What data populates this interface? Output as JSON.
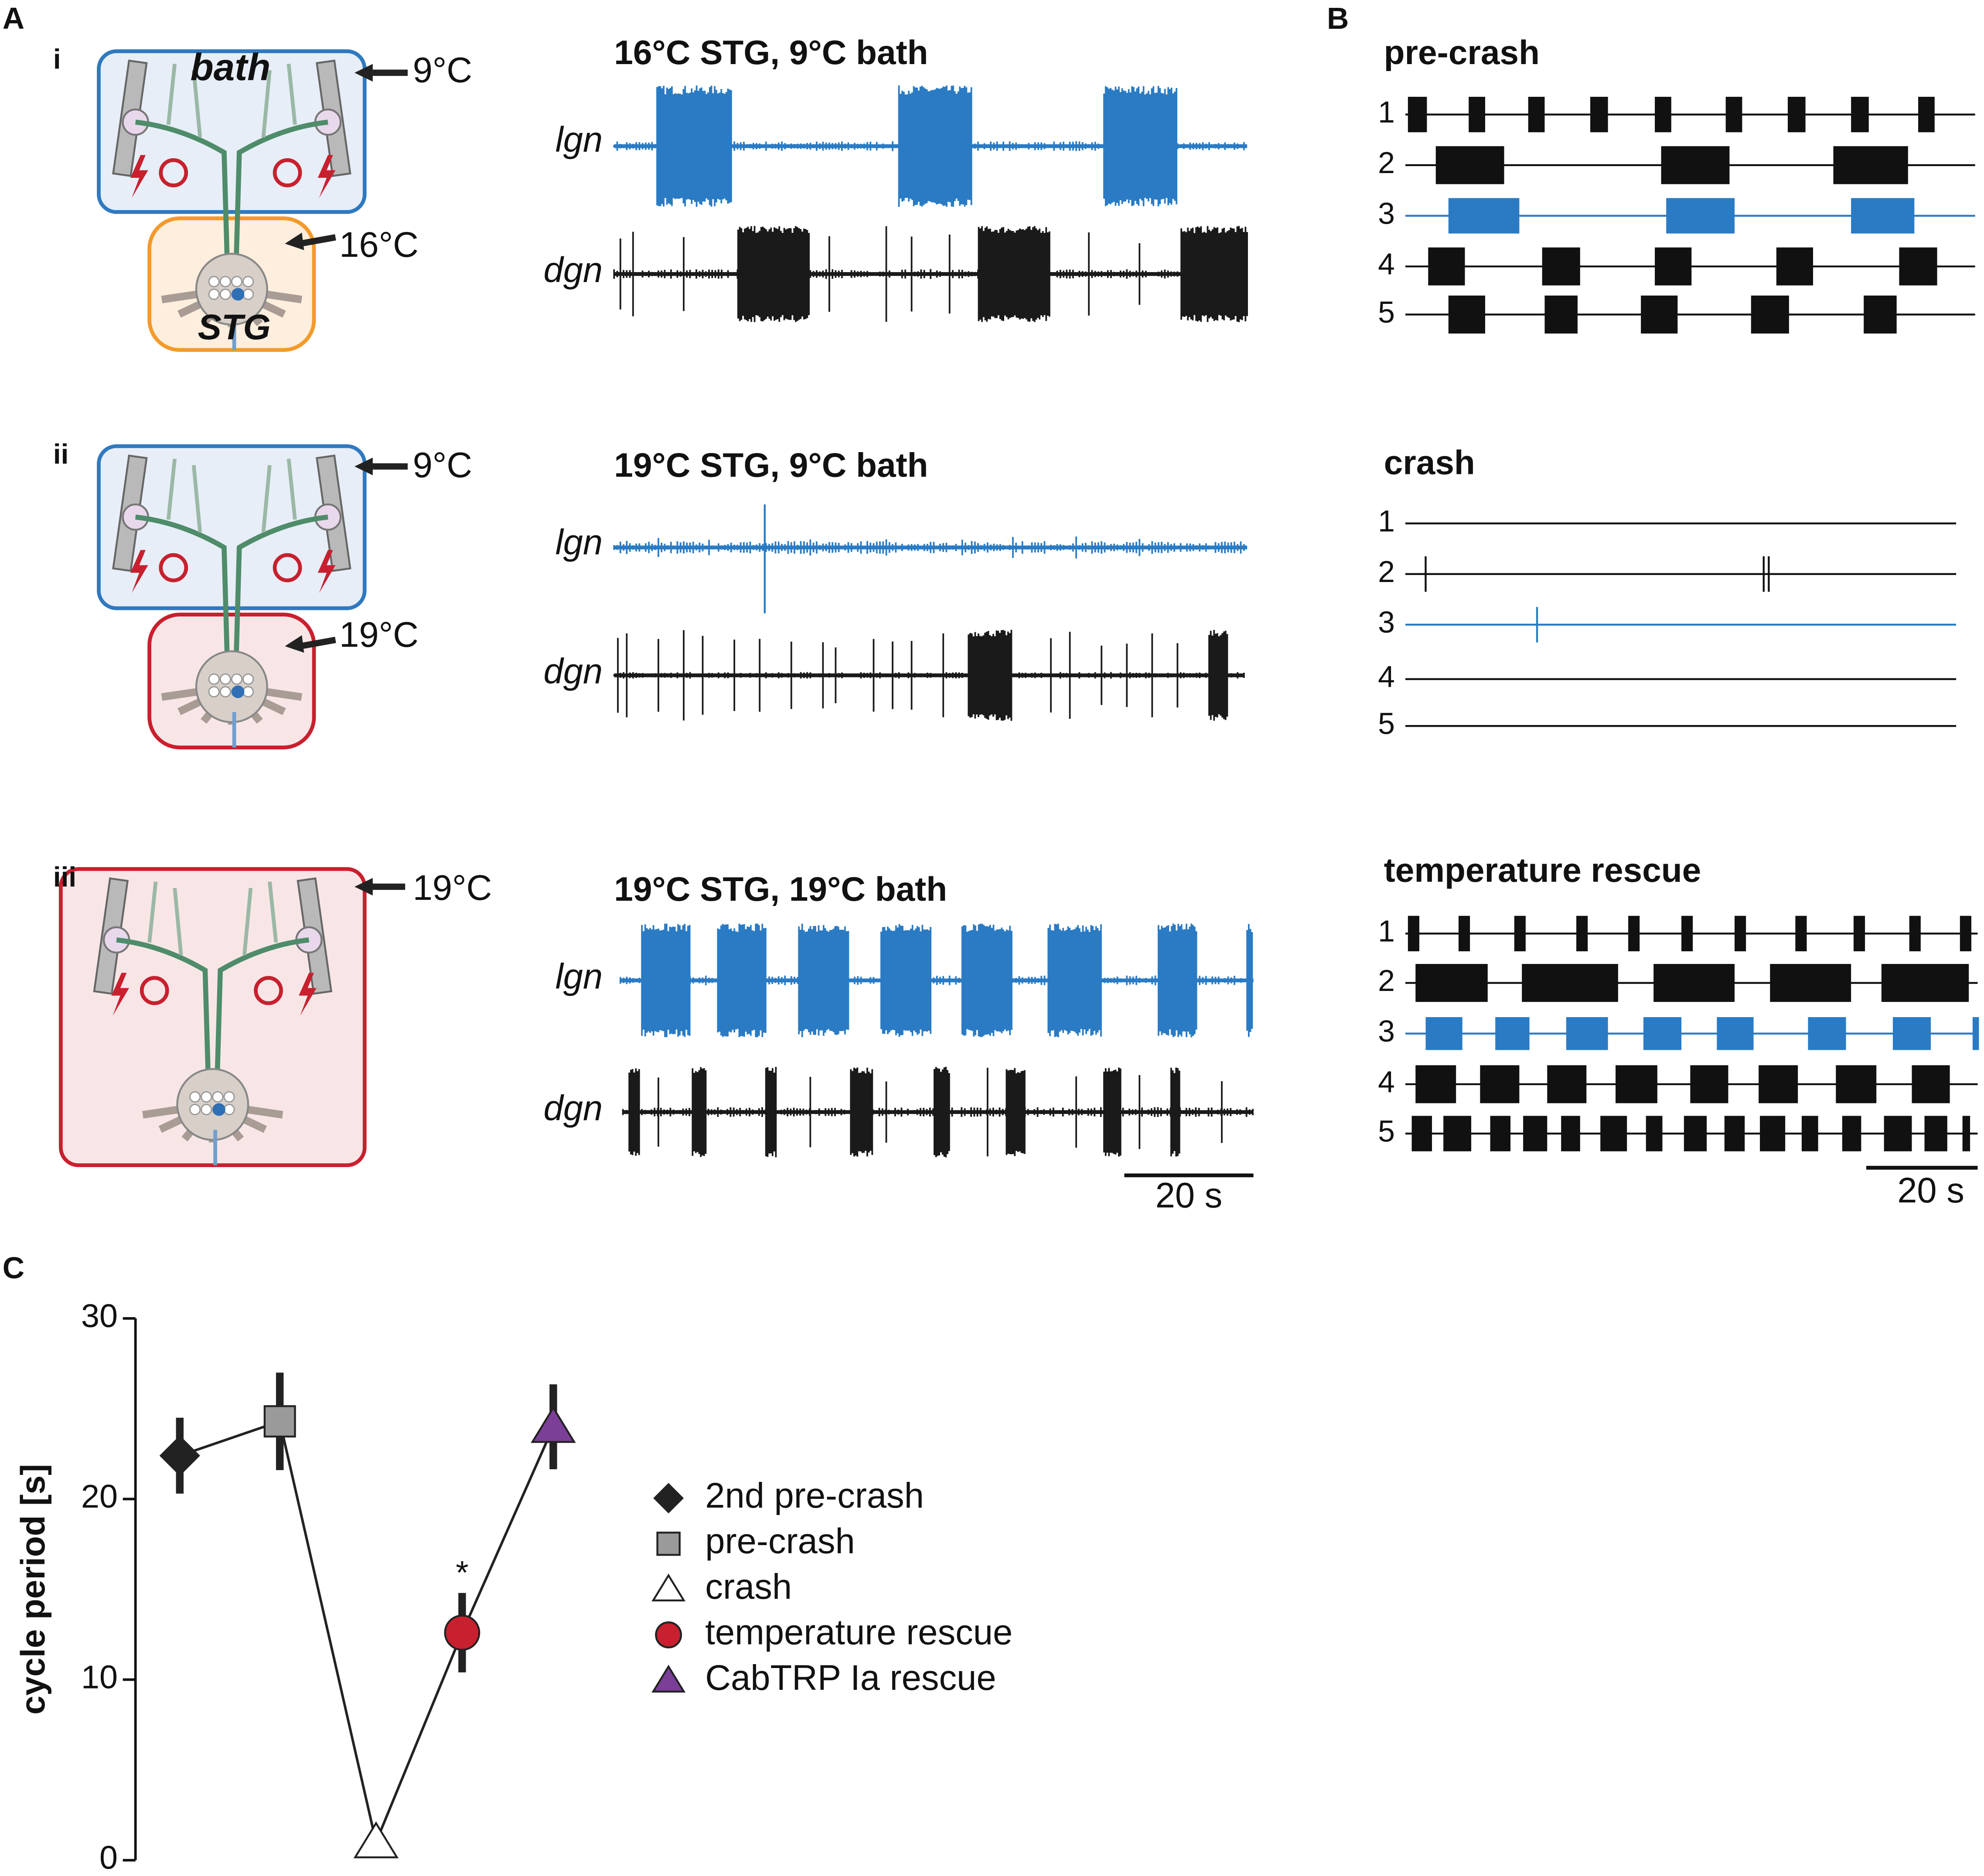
{
  "figure": {
    "panel_a": {
      "label": "A",
      "rows": [
        {
          "label": "i",
          "bath_temp": "9°C",
          "stg_temp": "16°C",
          "title": "16°C STG, 9°C bath"
        },
        {
          "label": "ii",
          "bath_temp": "9°C",
          "stg_temp": "19°C",
          "title": "19°C STG, 9°C bath"
        },
        {
          "label": "iii",
          "bath_temp": "19°C",
          "title": "19°C STG, 19°C bath"
        }
      ],
      "bath_label": "bath",
      "stg_label": "STG",
      "traces": [
        "lgn",
        "dgn"
      ],
      "scale_bar": "20 s"
    },
    "panel_b": {
      "label": "B",
      "sections": [
        "pre-crash",
        "crash",
        "temperature rescue"
      ],
      "rows": [
        "1",
        "2",
        "3",
        "4",
        "5"
      ],
      "scale_bar": "20 s"
    },
    "panel_c": {
      "label": "C"
    }
  },
  "chart_data": {
    "type": "scatter",
    "ylabel": "cycle period [s]",
    "ylim": [
      0,
      30
    ],
    "yticks": [
      0,
      10,
      20,
      30
    ],
    "annotation": "*",
    "series": [
      {
        "name": "2nd pre-crash",
        "color": "#222222",
        "marker": "diamond",
        "values": [
          22.4
        ],
        "errors": [
          2.1
        ]
      },
      {
        "name": "pre-crash",
        "color": "#9a9a9a",
        "marker": "square",
        "values": [
          24.3
        ],
        "errors": [
          2.7
        ]
      },
      {
        "name": "crash",
        "color": "#ffffff",
        "marker": "triangle",
        "values": [
          1.0
        ],
        "errors": [
          0
        ]
      },
      {
        "name": "temperature rescue",
        "color": "#c8202e",
        "marker": "circle",
        "values": [
          12.6
        ],
        "errors": [
          2.2
        ]
      },
      {
        "name": "CabTRP Ia rescue",
        "color": "#7b3f98",
        "marker": "triangle",
        "values": [
          24.0
        ],
        "errors": [
          2.35
        ]
      }
    ]
  }
}
